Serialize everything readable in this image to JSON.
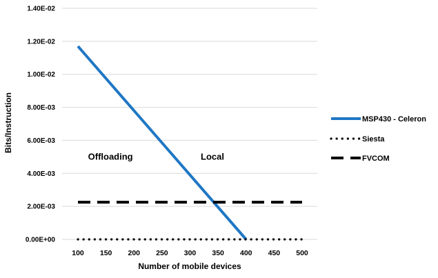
{
  "chart_data": {
    "type": "line",
    "xlabel": "Number of mobile devices",
    "ylabel": "Bits/Instruction",
    "x": [
      100,
      150,
      200,
      250,
      300,
      350,
      400,
      450,
      500
    ],
    "x_tick_labels": [
      "100",
      "150",
      "200",
      "250",
      "300",
      "350",
      "400",
      "450",
      "500"
    ],
    "xlim": [
      100,
      500
    ],
    "ylim": [
      0,
      0.014
    ],
    "y_ticks": [
      0,
      0.002,
      0.004,
      0.006,
      0.008,
      0.01,
      0.012,
      0.014
    ],
    "y_tick_labels": [
      "0.00E+00",
      "2.00E-03",
      "4.00E-03",
      "6.00E-03",
      "8.00E-03",
      "1.00E-02",
      "1.20E-02",
      "1.40E-02"
    ],
    "grid": "horizontal",
    "legend_position": "right",
    "series": [
      {
        "name": "MSP430 - Celeron",
        "style": "solid",
        "color": "#1f77c4",
        "x": [
          100,
          400
        ],
        "values": [
          0.0117,
          0.0
        ]
      },
      {
        "name": "Siesta",
        "style": "dotted",
        "color": "#000000",
        "x": [
          100,
          500
        ],
        "values": [
          0.0,
          0.0
        ]
      },
      {
        "name": "FVCOM",
        "style": "dashed",
        "color": "#000000",
        "x": [
          100,
          500
        ],
        "values": [
          0.00225,
          0.00225
        ]
      }
    ],
    "annotations": [
      {
        "text": "Offloading",
        "x": 158,
        "y": 0.005
      },
      {
        "text": "Local",
        "x": 340,
        "y": 0.005
      }
    ]
  }
}
